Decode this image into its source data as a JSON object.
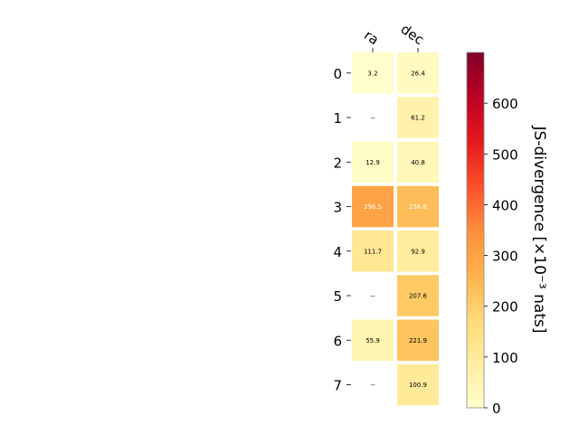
{
  "chart_data": {
    "type": "heatmap",
    "columns": [
      "ra",
      "dec"
    ],
    "rows": [
      "0",
      "1",
      "2",
      "3",
      "4",
      "5",
      "6",
      "7"
    ],
    "values": [
      [
        3.2,
        26.4
      ],
      [
        null,
        61.2
      ],
      [
        12.9,
        40.8
      ],
      [
        296.5,
        236.8
      ],
      [
        111.7,
        92.9
      ],
      [
        null,
        207.6
      ],
      [
        55.9,
        221.9
      ],
      [
        null,
        100.9
      ]
    ],
    "cell_labels": [
      [
        "3.2",
        "26.4"
      ],
      [
        "--",
        "61.2"
      ],
      [
        "12.9",
        "40.8"
      ],
      [
        "296.5",
        "236.8"
      ],
      [
        "111.7",
        "92.9"
      ],
      [
        "--",
        "207.6"
      ],
      [
        "55.9",
        "221.9"
      ],
      [
        "--",
        "100.9"
      ]
    ],
    "colorbar": {
      "label": "JS-divergence [×10⁻³ nats]",
      "range": [
        0,
        700
      ],
      "ticks": [
        0,
        100,
        200,
        300,
        400,
        500,
        600
      ],
      "tick_labels": [
        "0",
        "100",
        "200",
        "300",
        "400",
        "500",
        "600"
      ],
      "colormap": "YlOrRd"
    },
    "grid": false
  }
}
